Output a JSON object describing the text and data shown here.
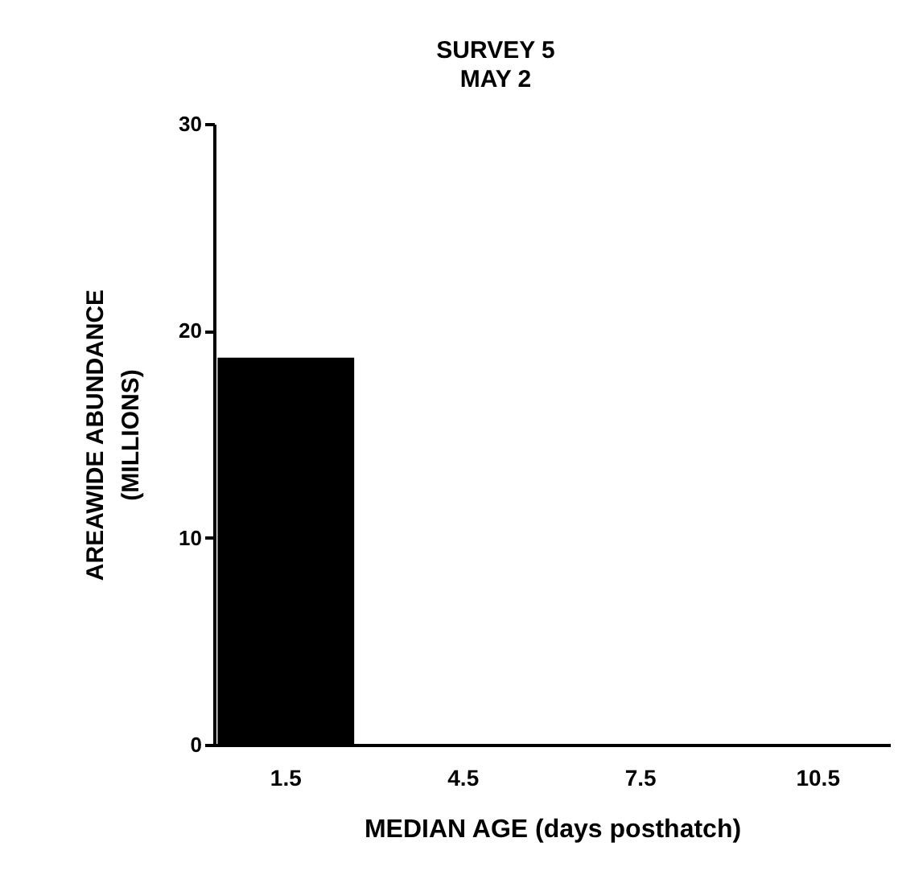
{
  "chart_data": {
    "type": "bar",
    "title": "SURVEY 5",
    "subtitle": "MAY 2",
    "xlabel": "MEDIAN AGE  (days posthatch)",
    "ylabel": "AREAWIDE ABUNDANCE\n(MILLIONS)",
    "categories": [
      "1.5",
      "4.5",
      "7.5",
      "10.5"
    ],
    "values": [
      18.7,
      0,
      0,
      0
    ],
    "color": "#000000",
    "ylim": [
      0,
      30
    ],
    "yticks": [
      0,
      10,
      20,
      30
    ],
    "grid": false
  }
}
